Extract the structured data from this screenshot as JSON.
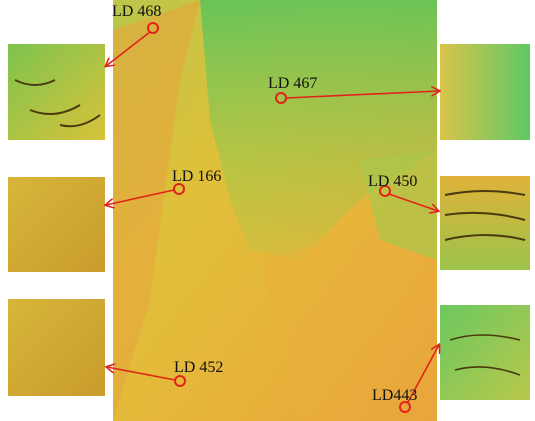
{
  "sites": [
    {
      "label": "LD 468"
    },
    {
      "label": "LD 467"
    },
    {
      "label": "LD 166"
    },
    {
      "label": "LD 450"
    },
    {
      "label": "LD 452"
    },
    {
      "label": "LD443"
    }
  ]
}
